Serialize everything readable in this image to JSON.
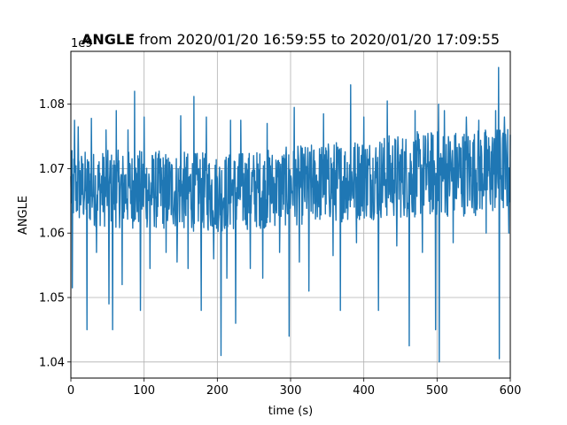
{
  "chart_data": {
    "type": "line",
    "title_bold": "ANGLE",
    "title_rest": " from 2020/01/20 16:59:55 to 2020/01/20 17:09:55",
    "xlabel": "time (s)",
    "ylabel": "ANGLE",
    "y_offset_label": "1e9",
    "xlim": [
      0,
      600
    ],
    "ylim": [
      1.0375,
      1.0882
    ],
    "grid": true,
    "x_ticks": [
      0,
      100,
      200,
      300,
      400,
      500,
      600
    ],
    "x_tick_labels": [
      "0",
      "100",
      "200",
      "300",
      "400",
      "500",
      "600"
    ],
    "y_ticks": [
      1.04,
      1.05,
      1.06,
      1.07,
      1.08
    ],
    "y_tick_labels": [
      "1.04",
      "1.05",
      "1.06",
      "1.07",
      "1.08"
    ],
    "series": [
      {
        "color": "#1f77b4",
        "band_lower": [
          [
            0,
            1.0625
          ],
          [
            100,
            1.062
          ],
          [
            200,
            1.0615
          ],
          [
            300,
            1.0625
          ],
          [
            400,
            1.0635
          ],
          [
            500,
            1.064
          ],
          [
            600,
            1.0645
          ]
        ],
        "band_upper": [
          [
            0,
            1.0715
          ],
          [
            100,
            1.0715
          ],
          [
            200,
            1.071
          ],
          [
            300,
            1.072
          ],
          [
            400,
            1.0735
          ],
          [
            500,
            1.0745
          ],
          [
            600,
            1.075
          ]
        ],
        "spikes": [
          [
            2,
            1.0515
          ],
          [
            5,
            1.0775
          ],
          [
            10,
            1.0765
          ],
          [
            22,
            1.045
          ],
          [
            28,
            1.0778
          ],
          [
            35,
            1.057
          ],
          [
            48,
            1.076
          ],
          [
            52,
            1.049
          ],
          [
            57,
            1.045
          ],
          [
            62,
            1.079
          ],
          [
            70,
            1.052
          ],
          [
            78,
            1.076
          ],
          [
            87,
            1.082
          ],
          [
            95,
            1.048
          ],
          [
            100,
            1.078
          ],
          [
            108,
            1.0545
          ],
          [
            130,
            1.057
          ],
          [
            145,
            1.0555
          ],
          [
            150,
            1.0782
          ],
          [
            160,
            1.0545
          ],
          [
            168,
            1.0812
          ],
          [
            178,
            1.048
          ],
          [
            185,
            1.078
          ],
          [
            195,
            1.056
          ],
          [
            205,
            1.041
          ],
          [
            213,
            1.053
          ],
          [
            218,
            1.0775
          ],
          [
            225,
            1.046
          ],
          [
            232,
            1.0775
          ],
          [
            245,
            1.0545
          ],
          [
            262,
            1.053
          ],
          [
            268,
            1.077
          ],
          [
            285,
            1.057
          ],
          [
            298,
            1.044
          ],
          [
            305,
            1.0795
          ],
          [
            312,
            1.0555
          ],
          [
            325,
            1.051
          ],
          [
            345,
            1.0785
          ],
          [
            358,
            1.0565
          ],
          [
            368,
            1.048
          ],
          [
            382,
            1.083
          ],
          [
            390,
            1.0585
          ],
          [
            400,
            1.078
          ],
          [
            420,
            1.048
          ],
          [
            432,
            1.0805
          ],
          [
            445,
            1.058
          ],
          [
            462,
            1.0425
          ],
          [
            470,
            1.079
          ],
          [
            480,
            1.057
          ],
          [
            498,
            1.045
          ],
          [
            502,
            1.08
          ],
          [
            503,
            1.04
          ],
          [
            510,
            1.079
          ],
          [
            522,
            1.0585
          ],
          [
            540,
            1.078
          ],
          [
            557,
            1.0775
          ],
          [
            567,
            1.06
          ],
          [
            580,
            1.079
          ],
          [
            584,
            1.0857
          ],
          [
            585,
            1.0405
          ],
          [
            592,
            1.078
          ],
          [
            598,
            1.06
          ]
        ]
      }
    ]
  }
}
